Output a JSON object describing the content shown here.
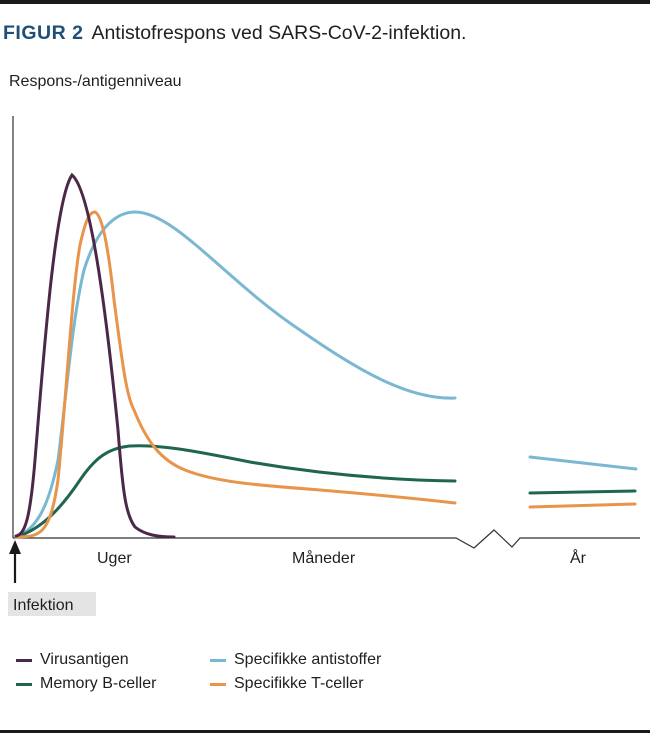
{
  "figure": {
    "label": "FIGUR 2",
    "title": "Antistofrespons ved SARS-CoV-2-infektion."
  },
  "chart_data": {
    "type": "line",
    "ylabel": "Respons-/antigenniveau",
    "x_sections": [
      "Uger",
      "Måneder",
      "År"
    ],
    "x_axis_break": true,
    "annotation": "Infektion",
    "y_ticks": false,
    "grid": false,
    "legend_placement": "bottom",
    "series": [
      {
        "name": "Virusantigen",
        "color": "#4b2848",
        "shape": "sharp early peak in the first weeks, falls back to zero within weeks",
        "relative_peak": 1.0
      },
      {
        "name": "Specifikke T-celler",
        "color": "#e8944a",
        "shape": "rises just after the antigen, peaks in the first weeks, then declines and plateaus low",
        "relative_peak": 0.9
      },
      {
        "name": "Specifikke antistoffer",
        "color": "#7ab8d2",
        "shape": "rises over the first weeks, peaks around the first month, declines slowly over months and years",
        "relative_peak": 0.88
      },
      {
        "name": "Memory B-celler",
        "color": "#1e6652",
        "shape": "rises over weeks to a low level, then remains stable over months and years",
        "relative_peak": 0.25
      }
    ]
  },
  "legend": [
    {
      "name": "Virusantigen",
      "color": "#4b2848"
    },
    {
      "name": "Memory B-celler",
      "color": "#1e6652"
    },
    {
      "name": "Specifikke antistoffer",
      "color": "#7ab8d2"
    },
    {
      "name": "Specifikke T-celler",
      "color": "#e8944a"
    }
  ]
}
